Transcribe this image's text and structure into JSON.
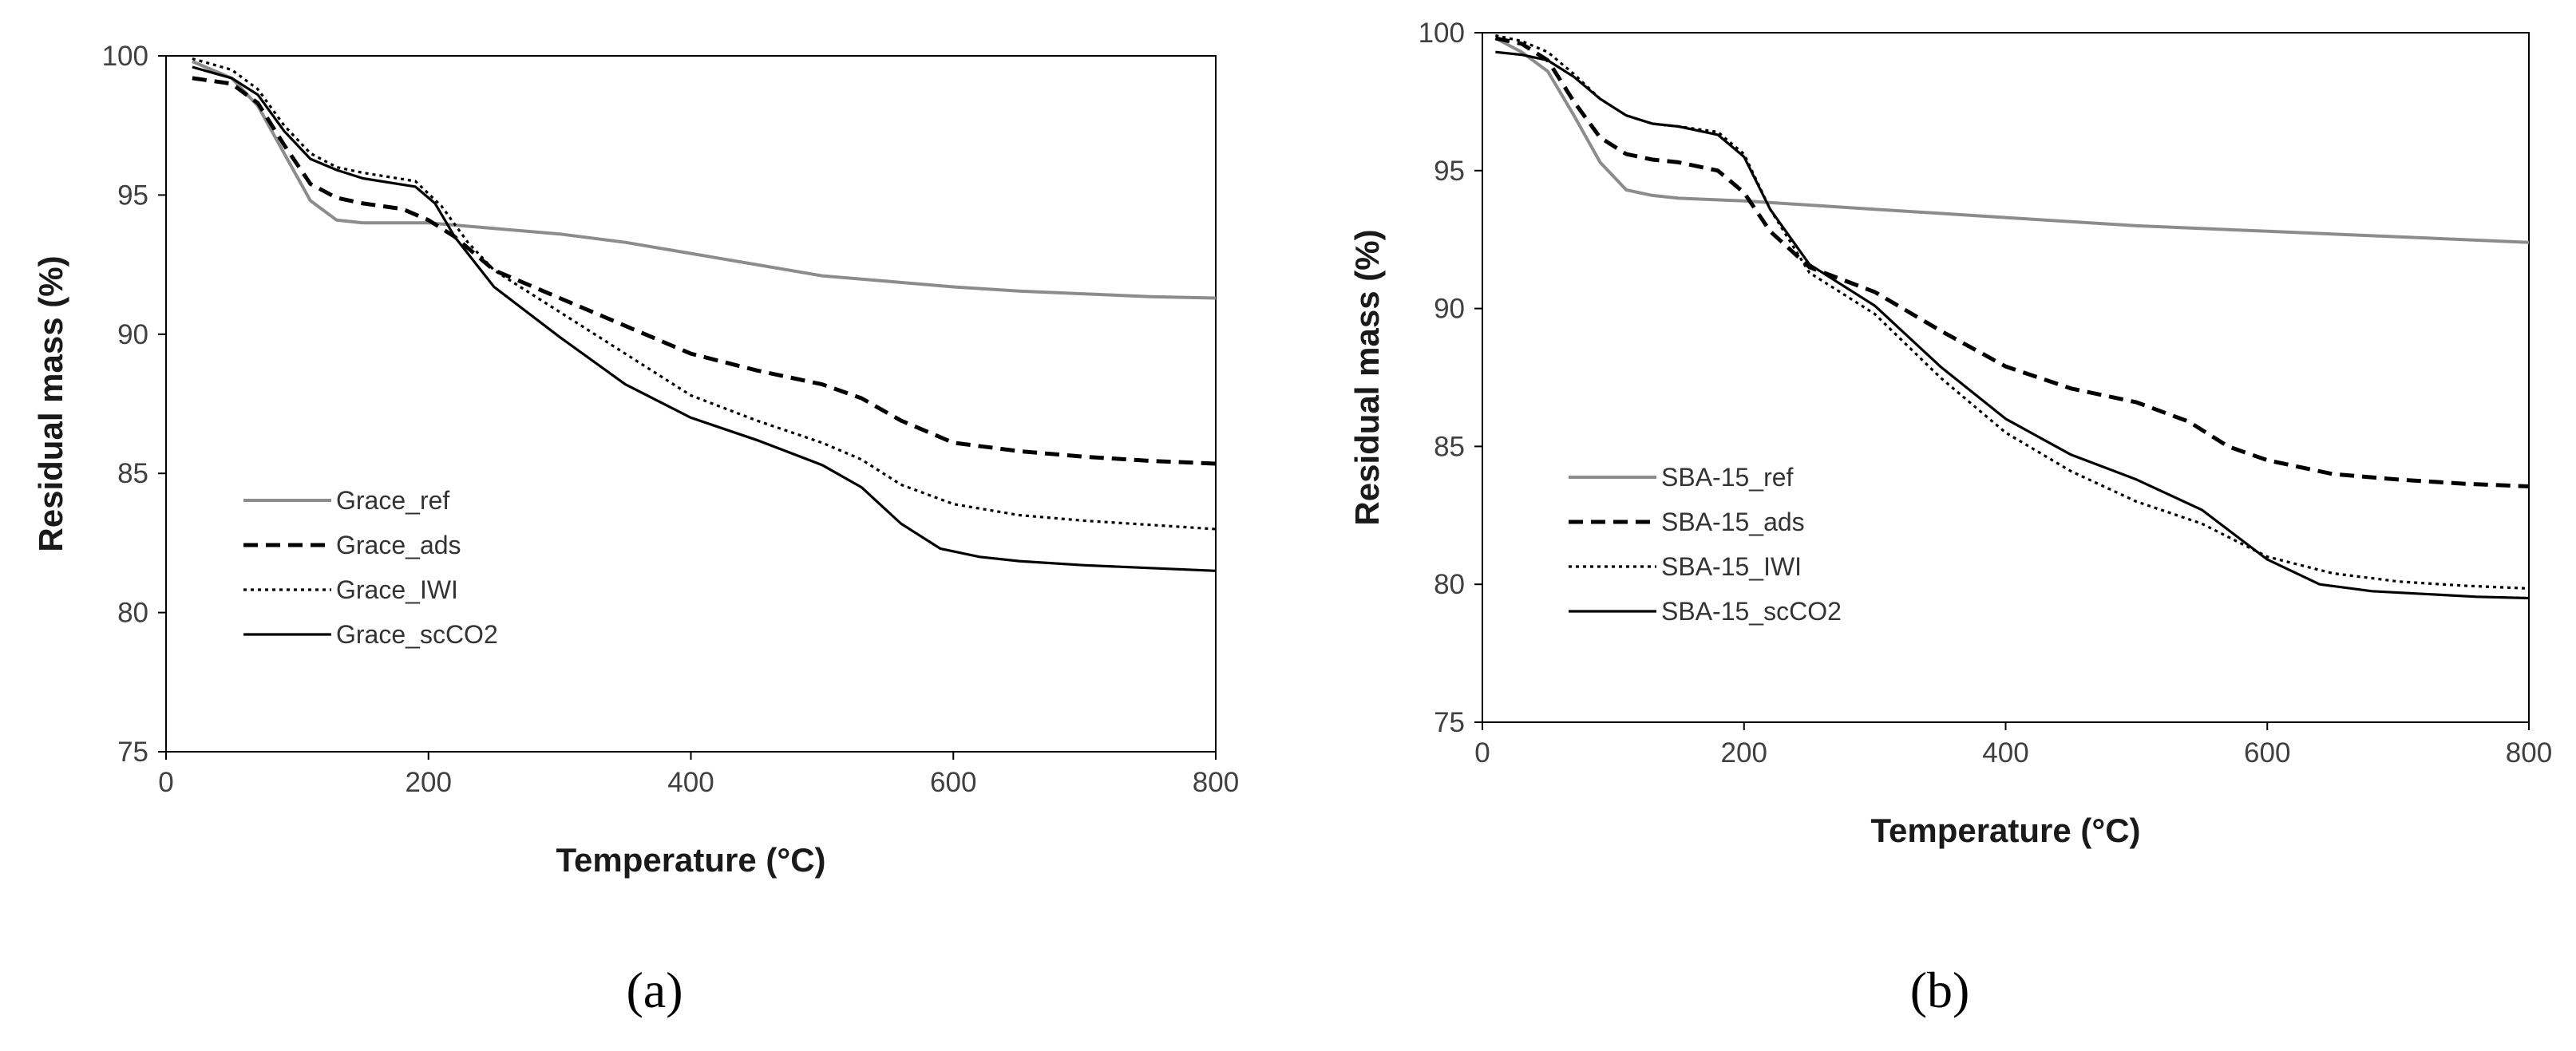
{
  "chart_data": [
    {
      "type": "line",
      "panel_label": "(a)",
      "xlabel": "Temperature (°C)",
      "ylabel": "Residual mass (%)",
      "xlim": [
        0,
        800
      ],
      "ylim": [
        75,
        100
      ],
      "xticks": [
        "0",
        "200",
        "400",
        "600",
        "800"
      ],
      "yticks": [
        "75",
        "80",
        "85",
        "90",
        "95",
        "100"
      ],
      "legend_position": "bottom-left",
      "series": [
        {
          "name": "Grace_ref",
          "color": "#8c8c8c",
          "dash": "solid",
          "x": [
            20,
            50,
            70,
            90,
            110,
            130,
            150,
            180,
            200,
            250,
            300,
            350,
            400,
            450,
            500,
            550,
            600,
            650,
            700,
            750,
            800
          ],
          "y": [
            99.8,
            99.2,
            98.2,
            96.5,
            94.8,
            94.1,
            94.0,
            94.0,
            94.0,
            93.8,
            93.6,
            93.3,
            92.9,
            92.5,
            92.1,
            91.9,
            91.7,
            91.55,
            91.45,
            91.35,
            91.3
          ]
        },
        {
          "name": "Grace_ads",
          "color": "#000000",
          "dash": "dashed",
          "x": [
            20,
            50,
            70,
            90,
            110,
            130,
            150,
            180,
            200,
            220,
            250,
            300,
            350,
            400,
            450,
            500,
            530,
            560,
            600,
            650,
            700,
            750,
            800
          ],
          "y": [
            99.2,
            99.0,
            98.3,
            96.8,
            95.4,
            94.9,
            94.7,
            94.5,
            94.1,
            93.5,
            92.3,
            91.3,
            90.3,
            89.3,
            88.7,
            88.2,
            87.7,
            86.9,
            86.1,
            85.8,
            85.6,
            85.45,
            85.35
          ]
        },
        {
          "name": "Grace_IWI",
          "color": "#000000",
          "dash": "dotted",
          "x": [
            20,
            50,
            70,
            90,
            110,
            130,
            150,
            190,
            210,
            230,
            250,
            300,
            350,
            400,
            450,
            500,
            530,
            560,
            600,
            650,
            700,
            750,
            800
          ],
          "y": [
            99.9,
            99.5,
            98.8,
            97.5,
            96.5,
            96.0,
            95.8,
            95.5,
            94.6,
            93.3,
            92.3,
            90.8,
            89.3,
            87.8,
            86.9,
            86.1,
            85.5,
            84.6,
            83.9,
            83.5,
            83.3,
            83.15,
            83.0
          ]
        },
        {
          "name": "Grace_scCO2",
          "color": "#000000",
          "dash": "solid",
          "x": [
            20,
            50,
            70,
            90,
            110,
            130,
            150,
            190,
            205,
            220,
            250,
            300,
            350,
            400,
            450,
            500,
            530,
            560,
            590,
            620,
            650,
            700,
            750,
            800
          ],
          "y": [
            99.6,
            99.2,
            98.6,
            97.3,
            96.3,
            95.9,
            95.6,
            95.3,
            94.7,
            93.5,
            91.7,
            89.9,
            88.2,
            87.0,
            86.2,
            85.3,
            84.5,
            83.2,
            82.3,
            82.0,
            81.85,
            81.7,
            81.6,
            81.5
          ]
        }
      ]
    },
    {
      "type": "line",
      "panel_label": "(b)",
      "xlabel": "Temperature (°C)",
      "ylabel": "Residual mass (%)",
      "xlim": [
        0,
        800
      ],
      "ylim": [
        75,
        100
      ],
      "xticks": [
        "0",
        "200",
        "400",
        "600",
        "800"
      ],
      "yticks": [
        "75",
        "80",
        "85",
        "90",
        "95",
        "100"
      ],
      "legend_position": "bottom-left",
      "series": [
        {
          "name": "SBA-15_ref",
          "color": "#8c8c8c",
          "dash": "solid",
          "x": [
            10,
            30,
            50,
            70,
            90,
            110,
            130,
            150,
            200,
            300,
            400,
            500,
            600,
            700,
            800
          ],
          "y": [
            99.8,
            99.3,
            98.6,
            97.0,
            95.3,
            94.3,
            94.1,
            94.0,
            93.9,
            93.6,
            93.3,
            93.0,
            92.8,
            92.6,
            92.4
          ]
        },
        {
          "name": "SBA-15_ads",
          "color": "#000000",
          "dash": "dashed",
          "x": [
            10,
            30,
            50,
            70,
            90,
            110,
            130,
            150,
            180,
            200,
            220,
            250,
            300,
            350,
            400,
            450,
            500,
            540,
            570,
            600,
            650,
            700,
            750,
            800
          ],
          "y": [
            99.8,
            99.6,
            99.0,
            97.5,
            96.2,
            95.6,
            95.4,
            95.3,
            95.0,
            94.2,
            92.8,
            91.5,
            90.6,
            89.2,
            87.9,
            87.1,
            86.6,
            85.9,
            85.0,
            84.5,
            84.0,
            83.8,
            83.65,
            83.55
          ]
        },
        {
          "name": "SBA-15_IWI",
          "color": "#000000",
          "dash": "dotted",
          "x": [
            10,
            30,
            50,
            70,
            90,
            110,
            130,
            150,
            180,
            200,
            220,
            250,
            300,
            350,
            400,
            450,
            500,
            550,
            600,
            650,
            700,
            750,
            800
          ],
          "y": [
            99.9,
            99.7,
            99.3,
            98.5,
            97.6,
            97.0,
            96.7,
            96.6,
            96.4,
            95.6,
            93.6,
            91.3,
            89.8,
            87.5,
            85.5,
            84.1,
            83.0,
            82.2,
            81.0,
            80.4,
            80.1,
            79.95,
            79.85
          ]
        },
        {
          "name": "SBA-15_scCO2",
          "color": "#000000",
          "dash": "solid",
          "x": [
            10,
            30,
            50,
            70,
            90,
            110,
            130,
            150,
            180,
            200,
            220,
            250,
            300,
            350,
            400,
            450,
            500,
            550,
            600,
            640,
            680,
            720,
            760,
            800
          ],
          "y": [
            99.3,
            99.2,
            99.0,
            98.4,
            97.6,
            97.0,
            96.7,
            96.6,
            96.3,
            95.5,
            93.6,
            91.6,
            90.1,
            87.9,
            86.0,
            84.7,
            83.8,
            82.7,
            80.9,
            80.0,
            79.75,
            79.65,
            79.55,
            79.5
          ]
        }
      ]
    }
  ]
}
